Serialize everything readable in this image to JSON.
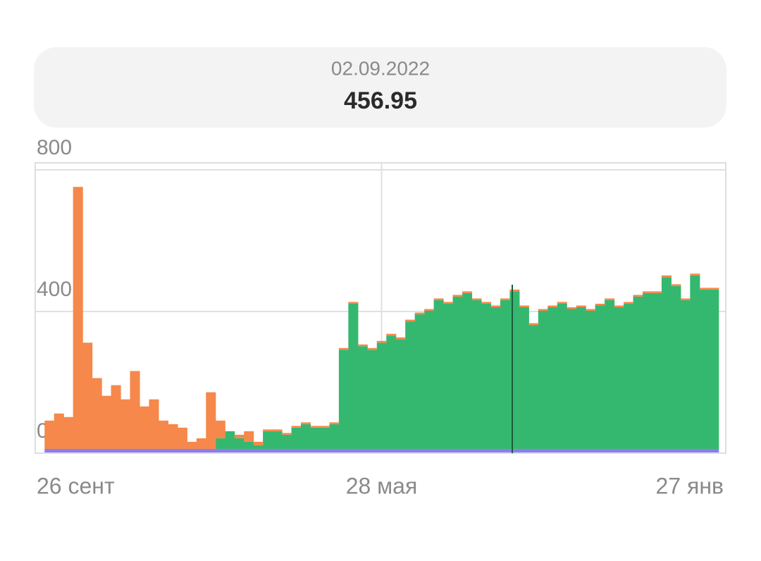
{
  "chart_data": {
    "type": "stacked-bar",
    "header": {
      "date": "02.09.2022",
      "value": "456.95"
    },
    "categories": [
      "26 сент",
      null,
      null,
      null,
      null,
      null,
      null,
      null,
      null,
      null,
      null,
      null,
      null,
      null,
      null,
      null,
      null,
      null,
      null,
      null,
      null,
      null,
      null,
      null,
      null,
      null,
      null,
      null,
      null,
      null,
      null,
      null,
      null,
      null,
      null,
      "28 мая",
      null,
      null,
      null,
      null,
      null,
      null,
      null,
      null,
      null,
      null,
      null,
      null,
      null,
      null,
      null,
      null,
      null,
      null,
      null,
      null,
      null,
      null,
      null,
      null,
      null,
      null,
      null,
      null,
      null,
      null,
      null,
      null,
      null,
      null,
      "27 янв"
    ],
    "series": [
      {
        "color": "#8a7cf2",
        "values": [
          12,
          12,
          12,
          12,
          12,
          12,
          12,
          12,
          12,
          12,
          12,
          12,
          12,
          12,
          12,
          12,
          12,
          12,
          12,
          12,
          12,
          12,
          12,
          12,
          12,
          12,
          12,
          12,
          12,
          12,
          12,
          12,
          12,
          12,
          12,
          12,
          12,
          12,
          12,
          12,
          12,
          12,
          12,
          12,
          12,
          12,
          12,
          12,
          12,
          12,
          12,
          12,
          12,
          12,
          12,
          12,
          12,
          12,
          12,
          12,
          12,
          12,
          12,
          12,
          12,
          12,
          12,
          12,
          12,
          12,
          12
        ]
      },
      {
        "color": "#34b86f",
        "values": [
          0,
          0,
          0,
          0,
          0,
          0,
          0,
          0,
          0,
          0,
          0,
          0,
          0,
          0,
          0,
          0,
          0,
          0,
          30,
          50,
          30,
          20,
          10,
          50,
          50,
          40,
          60,
          70,
          60,
          60,
          70,
          280,
          410,
          290,
          280,
          300,
          320,
          310,
          360,
          380,
          390,
          420,
          410,
          430,
          440,
          420,
          410,
          400,
          420,
          445,
          400,
          350,
          390,
          400,
          410,
          395,
          400,
          390,
          405,
          420,
          400,
          410,
          430,
          440,
          440,
          485,
          460,
          420,
          490,
          450,
          450
        ]
      },
      {
        "color": "#f5884a",
        "values": [
          80,
          100,
          90,
          740,
          300,
          200,
          150,
          180,
          140,
          220,
          120,
          140,
          80,
          70,
          60,
          20,
          30,
          160,
          50,
          0,
          10,
          30,
          10,
          5,
          5,
          5,
          5,
          5,
          5,
          5,
          5,
          5,
          5,
          5,
          5,
          5,
          5,
          5,
          5,
          5,
          5,
          5,
          5,
          5,
          5,
          5,
          5,
          5,
          5,
          5,
          5,
          5,
          5,
          5,
          5,
          5,
          5,
          5,
          5,
          5,
          5,
          5,
          5,
          5,
          5,
          5,
          5,
          5,
          5,
          5,
          5
        ]
      }
    ],
    "ylim": [
      0,
      820
    ],
    "yticks": [
      0,
      400,
      800
    ],
    "grid": true
  }
}
